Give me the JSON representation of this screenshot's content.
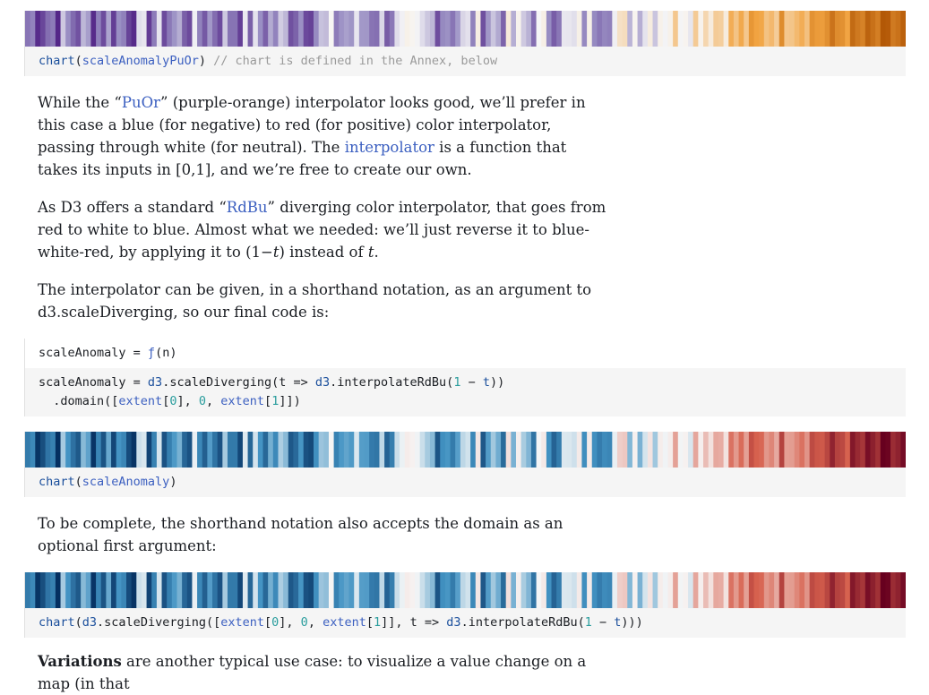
{
  "cells": [
    {
      "stripes_scheme": "PuOr",
      "code": {
        "fn": "chart",
        "arg": "scaleAnomalyPuOr",
        "comment": "// chart is defined in the Annex, below"
      }
    },
    {
      "stripes_scheme": "RdBu-reversed",
      "code": {
        "fn": "chart",
        "arg": "scaleAnomaly"
      }
    },
    {
      "stripes_scheme": "RdBu-reversed",
      "code": {
        "fn": "chart",
        "d3": "d3",
        "method": ".scaleDiverging([",
        "extent": "extent",
        "idx0": "0",
        "idx1": "1",
        "zero": "0",
        "arrow": "]], t => ",
        "interp": ".interpolateRdBu(",
        "one": "1",
        "minus": " − ",
        "t": "t",
        "close": ")))"
      }
    }
  ],
  "para1": {
    "t1": "While the “",
    "link1": "PuOr",
    "t2": "” (purple-orange) interpolator looks good, we’ll prefer in this case a blue (for negative) to red (for positive) color interpolator, passing through white (for neutral). The ",
    "link2": "interpolator",
    "t3": " is a function that takes its inputs in [0,1], and we’re free to create our own."
  },
  "para2": {
    "t1": "As D3 offers a standard “",
    "link1": "RdBu",
    "t2": "” diverging color interpolator, that goes from red to white to blue. Almost what we needed: we’ll just reverse it to blue-white-red, by applying it to (1−",
    "em1": "t",
    "t3": ") instead of ",
    "em2": "t",
    "t4": "."
  },
  "para3": "The interpolator can be given, in a shorthand notation, as an argument to d3.scaleDiverging, so our final code is:",
  "code_scale_anomaly": {
    "line1_name": "scaleAnomaly = ",
    "line1_fn": "ƒ",
    "line1_arg": "(n)",
    "line2_name": "scaleAnomaly = ",
    "d3": "d3",
    "line2_method": ".scaleDiverging(t => ",
    "interp": ".interpolateRdBu(",
    "one": "1",
    "minus": " − ",
    "t": "t",
    "close": "))",
    "line3_a": "  .domain([",
    "extent": "extent",
    "i0": "0",
    "mid": "], ",
    "zero": "0",
    "comma": ", ",
    "i1": "1",
    "end": "]])"
  },
  "para4": "To be complete, the shorthand notation also accepts the domain as an optional first argument:",
  "para5": {
    "bold": "Variations",
    "rest": " are another typical use case: to visualize a value change on a map (in that"
  },
  "colors": {
    "link": "#3b5fc0",
    "code_bg": "#f5f5f5",
    "number": "#2a9d9d"
  }
}
